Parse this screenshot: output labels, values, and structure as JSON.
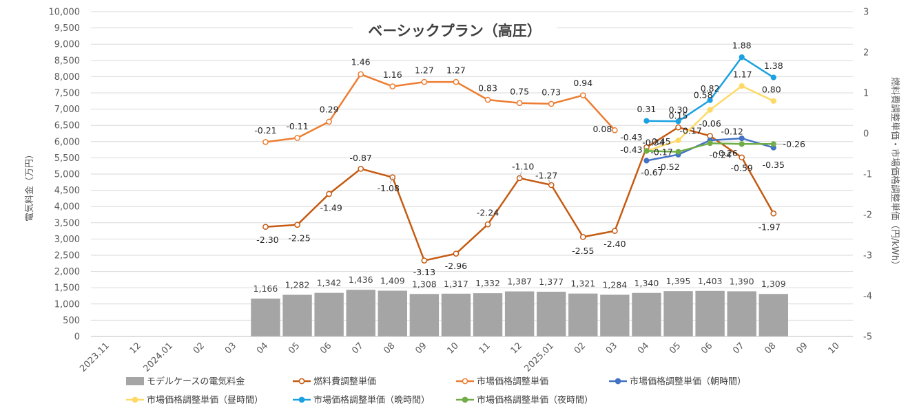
{
  "chart_data": {
    "type": "bar+line",
    "title": "ベーシックプラン（高圧）",
    "ylabel_left": "電気料金（万円）",
    "ylabel_right": "燃料費調整単価・市場価格調整単価（円/kWh）",
    "ylim_left": [
      0,
      10000
    ],
    "ylim_right": [
      -5,
      3
    ],
    "left_ticks": [
      "0",
      "500",
      "1,000",
      "1,500",
      "2,000",
      "2,500",
      "3,000",
      "3,500",
      "4,000",
      "4,500",
      "5,000",
      "5,500",
      "6,000",
      "6,500",
      "7,000",
      "7,500",
      "8,000",
      "8,500",
      "9,000",
      "9,500",
      "10,000"
    ],
    "right_ticks": [
      "-5",
      "-4",
      "-3",
      "-2",
      "-1",
      "0",
      "1",
      "2",
      "3"
    ],
    "categories": [
      "2023.11",
      "12",
      "2024.01",
      "02",
      "03",
      "04",
      "05",
      "06",
      "07",
      "08",
      "09",
      "10",
      "11",
      "12",
      "2025.01",
      "02",
      "03",
      "04",
      "05",
      "06",
      "07",
      "08",
      "09",
      "10"
    ],
    "bar_series": {
      "name": "モデルケースの電気料金",
      "color": "#a5a5a5",
      "values": [
        null,
        null,
        null,
        null,
        null,
        1166,
        1282,
        1342,
        1436,
        1409,
        1308,
        1317,
        1332,
        1387,
        1377,
        1321,
        1284,
        1340,
        1395,
        1403,
        1390,
        1309,
        null,
        null
      ],
      "labels": [
        "",
        "",
        "",
        "",
        "",
        "1,166",
        "1,282",
        "1,342",
        "1,436",
        "1,409",
        "1,308",
        "1,317",
        "1,332",
        "1,387",
        "1,377",
        "1,321",
        "1,284",
        "1,340",
        "1,395",
        "1,403",
        "1,390",
        "1,309",
        "",
        ""
      ]
    },
    "line_series": [
      {
        "name": "燃料費調整単価",
        "color": "#c55a11",
        "marker": "open",
        "values": [
          null,
          null,
          null,
          null,
          null,
          -2.3,
          -2.25,
          -1.49,
          -0.87,
          -1.08,
          -3.13,
          -2.96,
          -2.24,
          -1.1,
          -1.27,
          -2.55,
          -2.4,
          -0.34,
          0.15,
          -0.06,
          -0.59,
          -1.97,
          null,
          null
        ],
        "labels": [
          "",
          "",
          "",
          "",
          "",
          "-2.30",
          "-2.25",
          "-1.49",
          "-0.87",
          "-1.08",
          "-3.13",
          "-2.96",
          "-2.24",
          "-1.10",
          "-1.27",
          "-2.55",
          "-2.40",
          "-0.34",
          "0.15",
          "-0.06",
          "-0.59",
          "-1.97",
          "",
          ""
        ]
      },
      {
        "name": "市場価格調整単価",
        "color": "#ed7d31",
        "marker": "open",
        "values": [
          null,
          null,
          null,
          null,
          null,
          -0.21,
          -0.11,
          0.29,
          1.46,
          1.16,
          1.27,
          1.27,
          0.83,
          0.75,
          0.73,
          0.94,
          0.08,
          null,
          null,
          null,
          null,
          null,
          null,
          null
        ],
        "labels": [
          "",
          "",
          "",
          "",
          "",
          "-0.21",
          "-0.11",
          "0.29",
          "1.46",
          "1.16",
          "1.27",
          "1.27",
          "0.83",
          "0.75",
          "0.73",
          "0.94",
          "0.08",
          "",
          "",
          "",
          "",
          "",
          "",
          ""
        ]
      },
      {
        "name": "市場価格調整単価（朝時間）",
        "color": "#4472c4",
        "marker": "filled",
        "values": [
          null,
          null,
          null,
          null,
          null,
          null,
          null,
          null,
          null,
          null,
          null,
          null,
          null,
          null,
          null,
          null,
          null,
          -0.67,
          -0.52,
          -0.17,
          -0.12,
          -0.35,
          null,
          null
        ],
        "labels": [
          "",
          "",
          "",
          "",
          "",
          "",
          "",
          "",
          "",
          "",
          "",
          "",
          "",
          "",
          "",
          "",
          "",
          "-0.67",
          "-0.52",
          "-0.17",
          "-0.12",
          "-0.35",
          "",
          ""
        ]
      },
      {
        "name": "市場価格調整単価（昼時間）",
        "color": "#ffd966",
        "marker": "filled",
        "values": [
          null,
          null,
          null,
          null,
          null,
          null,
          null,
          null,
          null,
          null,
          null,
          null,
          null,
          null,
          null,
          null,
          null,
          -0.43,
          -0.17,
          0.58,
          1.17,
          0.8,
          null,
          null
        ],
        "labels": [
          "",
          "",
          "",
          "",
          "",
          "",
          "",
          "",
          "",
          "",
          "",
          "",
          "",
          "",
          "",
          "",
          "",
          "-0.43",
          "-0.17",
          "0.58",
          "1.17",
          "0.80",
          "",
          ""
        ]
      },
      {
        "name": "市場価格調整単価（晩時間）",
        "color": "#1ba1e2",
        "marker": "filled",
        "values": [
          null,
          null,
          null,
          null,
          null,
          null,
          null,
          null,
          null,
          null,
          null,
          null,
          null,
          null,
          null,
          null,
          null,
          0.31,
          0.3,
          0.82,
          1.88,
          1.38,
          null,
          null
        ],
        "labels": [
          "",
          "",
          "",
          "",
          "",
          "",
          "",
          "",
          "",
          "",
          "",
          "",
          "",
          "",
          "",
          "",
          "",
          "0.31",
          "0.30",
          "0.82",
          "1.88",
          "1.38",
          "",
          ""
        ]
      },
      {
        "name": "市場価格調整単価（夜時間）",
        "color": "#70ad47",
        "marker": "filled",
        "values": [
          null,
          null,
          null,
          null,
          null,
          null,
          null,
          null,
          null,
          null,
          null,
          null,
          null,
          null,
          null,
          null,
          null,
          -0.43,
          -0.45,
          -0.24,
          -0.26,
          -0.26,
          null,
          null
        ],
        "labels": [
          "",
          "",
          "",
          "",
          "",
          "",
          "",
          "",
          "",
          "",
          "",
          "",
          "",
          "",
          "",
          "",
          "",
          "-0.43",
          "-0.45",
          "-0.24",
          "-0.26",
          "-0.26",
          "",
          ""
        ]
      }
    ],
    "grid": true,
    "legend_position": "bottom"
  }
}
